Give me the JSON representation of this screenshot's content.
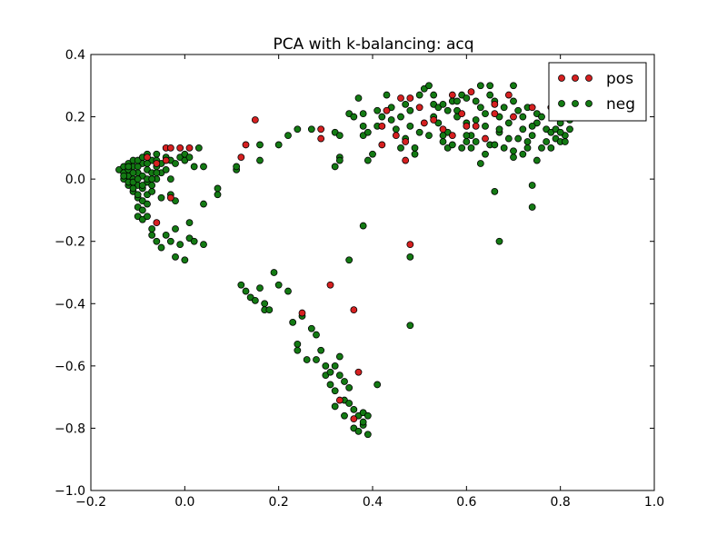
{
  "chart_data": {
    "type": "scatter",
    "title": "PCA with k-balancing: acq",
    "xlabel": "",
    "ylabel": "",
    "xlim": [
      -0.2,
      1.0
    ],
    "ylim": [
      -1.0,
      0.4
    ],
    "xticks": [
      "−0.2",
      "0.0",
      "0.2",
      "0.4",
      "0.6",
      "0.8",
      "1.0"
    ],
    "yticks": [
      "−1.0",
      "−0.8",
      "−0.6",
      "−0.4",
      "−0.2",
      "0.0",
      "0.2",
      "0.4"
    ],
    "grid": false,
    "legend_position": "top-right",
    "series": [
      {
        "name": "pos",
        "color": "#d62020",
        "points": [
          [
            -0.08,
            0.07
          ],
          [
            -0.06,
            0.05
          ],
          [
            -0.04,
            0.1
          ],
          [
            -0.03,
            0.1
          ],
          [
            -0.01,
            0.1
          ],
          [
            0.01,
            0.1
          ],
          [
            -0.06,
            -0.14
          ],
          [
            -0.03,
            -0.06
          ],
          [
            -0.04,
            0.06
          ],
          [
            0.15,
            0.19
          ],
          [
            0.13,
            0.11
          ],
          [
            0.12,
            0.07
          ],
          [
            0.29,
            0.16
          ],
          [
            0.29,
            0.13
          ],
          [
            0.43,
            0.22
          ],
          [
            0.46,
            0.26
          ],
          [
            0.48,
            0.26
          ],
          [
            0.5,
            0.23
          ],
          [
            0.53,
            0.19
          ],
          [
            0.55,
            0.16
          ],
          [
            0.57,
            0.27
          ],
          [
            0.59,
            0.21
          ],
          [
            0.61,
            0.28
          ],
          [
            0.62,
            0.17
          ],
          [
            0.66,
            0.24
          ],
          [
            0.7,
            0.2
          ],
          [
            0.74,
            0.23
          ],
          [
            0.78,
            0.23
          ],
          [
            0.79,
            0.21
          ],
          [
            0.57,
            0.14
          ],
          [
            0.51,
            0.18
          ],
          [
            0.45,
            0.14
          ],
          [
            0.47,
            0.12
          ],
          [
            0.42,
            0.11
          ],
          [
            0.42,
            0.17
          ],
          [
            0.47,
            0.06
          ],
          [
            0.48,
            -0.21
          ],
          [
            0.31,
            -0.34
          ],
          [
            0.36,
            -0.42
          ],
          [
            0.25,
            -0.43
          ],
          [
            0.37,
            -0.62
          ],
          [
            0.33,
            -0.71
          ],
          [
            0.36,
            -0.77
          ],
          [
            0.66,
            0.21
          ],
          [
            0.69,
            0.27
          ],
          [
            0.6,
            0.17
          ],
          [
            0.64,
            0.13
          ]
        ]
      },
      {
        "name": "neg",
        "color": "#137a13",
        "points": [
          [
            -0.14,
            0.03
          ],
          [
            -0.13,
            0.04
          ],
          [
            -0.13,
            0.02
          ],
          [
            -0.12,
            0.05
          ],
          [
            -0.12,
            0.01
          ],
          [
            -0.12,
            -0.02
          ],
          [
            -0.11,
            0.04
          ],
          [
            -0.11,
            0.0
          ],
          [
            -0.11,
            -0.04
          ],
          [
            -0.11,
            0.06
          ],
          [
            -0.1,
            0.02
          ],
          [
            -0.1,
            -0.02
          ],
          [
            -0.1,
            -0.06
          ],
          [
            -0.1,
            -0.09
          ],
          [
            -0.09,
            0.05
          ],
          [
            -0.09,
            0.01
          ],
          [
            -0.09,
            -0.03
          ],
          [
            -0.09,
            -0.07
          ],
          [
            -0.09,
            -0.1
          ],
          [
            -0.08,
            0.03
          ],
          [
            -0.08,
            -0.01
          ],
          [
            -0.08,
            -0.05
          ],
          [
            -0.08,
            -0.08
          ],
          [
            -0.07,
            0.06
          ],
          [
            -0.07,
            0.02
          ],
          [
            -0.07,
            -0.02
          ],
          [
            -0.07,
            -0.04
          ],
          [
            -0.06,
            0.04
          ],
          [
            -0.06,
            0.08
          ],
          [
            -0.06,
            0.0
          ],
          [
            -0.05,
            0.05
          ],
          [
            -0.05,
            0.02
          ],
          [
            -0.05,
            -0.06
          ],
          [
            -0.04,
            0.07
          ],
          [
            -0.04,
            0.03
          ],
          [
            -0.03,
            0.06
          ],
          [
            -0.03,
            0.0
          ],
          [
            -0.03,
            -0.05
          ],
          [
            -0.02,
            -0.07
          ],
          [
            -0.02,
            0.05
          ],
          [
            -0.01,
            0.07
          ],
          [
            0.0,
            0.06
          ],
          [
            0.0,
            0.08
          ],
          [
            0.01,
            0.07
          ],
          [
            0.02,
            0.04
          ],
          [
            0.03,
            0.1
          ],
          [
            0.04,
            0.04
          ],
          [
            -0.13,
            0.0
          ],
          [
            -0.12,
            0.03
          ],
          [
            -0.1,
            0.04
          ],
          [
            -0.08,
            0.05
          ],
          [
            -0.1,
            -0.12
          ],
          [
            -0.09,
            -0.13
          ],
          [
            -0.08,
            -0.12
          ],
          [
            -0.07,
            -0.16
          ],
          [
            -0.06,
            -0.2
          ],
          [
            -0.05,
            -0.22
          ],
          [
            -0.07,
            -0.18
          ],
          [
            -0.04,
            -0.18
          ],
          [
            -0.03,
            -0.2
          ],
          [
            -0.02,
            -0.16
          ],
          [
            -0.02,
            -0.25
          ],
          [
            -0.01,
            -0.21
          ],
          [
            0.0,
            -0.26
          ],
          [
            0.01,
            -0.19
          ],
          [
            0.02,
            -0.2
          ],
          [
            0.04,
            -0.21
          ],
          [
            0.01,
            -0.14
          ],
          [
            0.04,
            -0.08
          ],
          [
            0.07,
            -0.05
          ],
          [
            0.07,
            -0.03
          ],
          [
            0.11,
            0.03
          ],
          [
            0.11,
            0.04
          ],
          [
            0.16,
            0.11
          ],
          [
            0.16,
            0.06
          ],
          [
            0.2,
            0.11
          ],
          [
            0.22,
            0.14
          ],
          [
            0.24,
            0.16
          ],
          [
            0.27,
            0.16
          ],
          [
            0.32,
            0.15
          ],
          [
            0.33,
            0.14
          ],
          [
            0.33,
            0.07
          ],
          [
            0.32,
            0.04
          ],
          [
            0.33,
            0.06
          ],
          [
            0.35,
            0.21
          ],
          [
            0.36,
            0.2
          ],
          [
            0.37,
            0.26
          ],
          [
            0.38,
            0.21
          ],
          [
            0.38,
            0.17
          ],
          [
            0.38,
            0.14
          ],
          [
            0.39,
            0.15
          ],
          [
            0.4,
            0.08
          ],
          [
            0.39,
            0.06
          ],
          [
            0.41,
            0.17
          ],
          [
            0.42,
            0.2
          ],
          [
            0.41,
            0.22
          ],
          [
            0.43,
            0.27
          ],
          [
            0.44,
            0.23
          ],
          [
            0.44,
            0.19
          ],
          [
            0.45,
            0.16
          ],
          [
            0.46,
            0.2
          ],
          [
            0.47,
            0.24
          ],
          [
            0.48,
            0.22
          ],
          [
            0.48,
            0.17
          ],
          [
            0.49,
            0.1
          ],
          [
            0.49,
            0.08
          ],
          [
            0.5,
            0.15
          ],
          [
            0.5,
            0.27
          ],
          [
            0.51,
            0.29
          ],
          [
            0.52,
            0.3
          ],
          [
            0.53,
            0.27
          ],
          [
            0.53,
            0.24
          ],
          [
            0.54,
            0.23
          ],
          [
            0.54,
            0.18
          ],
          [
            0.55,
            0.12
          ],
          [
            0.56,
            0.1
          ],
          [
            0.56,
            0.15
          ],
          [
            0.57,
            0.25
          ],
          [
            0.58,
            0.22
          ],
          [
            0.58,
            0.2
          ],
          [
            0.59,
            0.27
          ],
          [
            0.6,
            0.18
          ],
          [
            0.6,
            0.12
          ],
          [
            0.61,
            0.14
          ],
          [
            0.62,
            0.25
          ],
          [
            0.62,
            0.19
          ],
          [
            0.63,
            0.3
          ],
          [
            0.63,
            0.23
          ],
          [
            0.64,
            0.21
          ],
          [
            0.64,
            0.17
          ],
          [
            0.65,
            0.11
          ],
          [
            0.65,
            0.3
          ],
          [
            0.66,
            0.25
          ],
          [
            0.67,
            0.2
          ],
          [
            0.67,
            0.15
          ],
          [
            0.68,
            0.1
          ],
          [
            0.68,
            0.23
          ],
          [
            0.69,
            0.18
          ],
          [
            0.7,
            0.3
          ],
          [
            0.7,
            0.25
          ],
          [
            0.71,
            0.22
          ],
          [
            0.71,
            0.13
          ],
          [
            0.72,
            0.16
          ],
          [
            0.72,
            0.2
          ],
          [
            0.73,
            0.23
          ],
          [
            0.73,
            0.1
          ],
          [
            0.74,
            0.14
          ],
          [
            0.75,
            0.18
          ],
          [
            0.75,
            0.21
          ],
          [
            0.76,
            0.2
          ],
          [
            0.76,
            0.1
          ],
          [
            0.77,
            0.12
          ],
          [
            0.77,
            0.16
          ],
          [
            0.78,
            0.15
          ],
          [
            0.79,
            0.13
          ],
          [
            0.8,
            0.12
          ],
          [
            0.8,
            0.18
          ],
          [
            0.81,
            0.14
          ],
          [
            0.82,
            0.19
          ],
          [
            0.82,
            0.16
          ],
          [
            0.63,
            0.05
          ],
          [
            0.64,
            0.08
          ],
          [
            0.66,
            -0.04
          ],
          [
            0.7,
            0.07
          ],
          [
            0.74,
            -0.02
          ],
          [
            0.7,
            0.09
          ],
          [
            0.72,
            0.08
          ],
          [
            0.75,
            0.06
          ],
          [
            0.67,
            -0.2
          ],
          [
            0.74,
            -0.09
          ],
          [
            0.48,
            -0.25
          ],
          [
            0.48,
            -0.47
          ],
          [
            0.35,
            -0.26
          ],
          [
            0.38,
            -0.15
          ],
          [
            0.12,
            -0.34
          ],
          [
            0.13,
            -0.36
          ],
          [
            0.14,
            -0.38
          ],
          [
            0.15,
            -0.39
          ],
          [
            0.16,
            -0.35
          ],
          [
            0.17,
            -0.4
          ],
          [
            0.17,
            -0.42
          ],
          [
            0.18,
            -0.42
          ],
          [
            0.19,
            -0.3
          ],
          [
            0.2,
            -0.34
          ],
          [
            0.22,
            -0.36
          ],
          [
            0.23,
            -0.46
          ],
          [
            0.24,
            -0.53
          ],
          [
            0.24,
            -0.55
          ],
          [
            0.25,
            -0.44
          ],
          [
            0.26,
            -0.58
          ],
          [
            0.27,
            -0.48
          ],
          [
            0.28,
            -0.5
          ],
          [
            0.28,
            -0.58
          ],
          [
            0.29,
            -0.55
          ],
          [
            0.3,
            -0.6
          ],
          [
            0.3,
            -0.63
          ],
          [
            0.31,
            -0.66
          ],
          [
            0.31,
            -0.62
          ],
          [
            0.32,
            -0.6
          ],
          [
            0.32,
            -0.68
          ],
          [
            0.33,
            -0.63
          ],
          [
            0.33,
            -0.57
          ],
          [
            0.34,
            -0.65
          ],
          [
            0.34,
            -0.71
          ],
          [
            0.35,
            -0.67
          ],
          [
            0.35,
            -0.72
          ],
          [
            0.36,
            -0.74
          ],
          [
            0.36,
            -0.8
          ],
          [
            0.37,
            -0.76
          ],
          [
            0.37,
            -0.81
          ],
          [
            0.38,
            -0.79
          ],
          [
            0.38,
            -0.75
          ],
          [
            0.39,
            -0.82
          ],
          [
            0.39,
            -0.76
          ],
          [
            0.38,
            -0.78
          ],
          [
            0.41,
            -0.66
          ],
          [
            0.32,
            -0.73
          ],
          [
            0.34,
            -0.76
          ],
          [
            0.46,
            0.1
          ],
          [
            0.47,
            0.13
          ],
          [
            0.52,
            0.14
          ],
          [
            0.55,
            0.14
          ],
          [
            0.57,
            0.11
          ],
          [
            0.59,
            0.1
          ],
          [
            0.61,
            0.1
          ],
          [
            0.53,
            0.2
          ],
          [
            0.55,
            0.24
          ],
          [
            0.56,
            0.22
          ],
          [
            0.58,
            0.25
          ],
          [
            0.6,
            0.26
          ],
          [
            0.65,
            0.27
          ],
          [
            0.67,
            0.16
          ],
          [
            0.69,
            0.13
          ],
          [
            0.73,
            0.12
          ],
          [
            0.74,
            0.17
          ],
          [
            0.78,
            0.1
          ],
          [
            0.79,
            0.16
          ],
          [
            0.8,
            0.15
          ],
          [
            0.81,
            0.12
          ],
          [
            0.6,
            0.14
          ],
          [
            0.62,
            0.12
          ],
          [
            0.66,
            0.11
          ],
          [
            -0.13,
            0.01
          ],
          [
            -0.12,
            -0.01
          ],
          [
            -0.11,
            -0.01
          ],
          [
            -0.1,
            0.0
          ],
          [
            -0.09,
            -0.02
          ],
          [
            -0.08,
            0.0
          ],
          [
            -0.1,
            -0.05
          ],
          [
            -0.11,
            -0.03
          ],
          [
            -0.07,
            0.0
          ],
          [
            -0.06,
            0.02
          ],
          [
            -0.11,
            0.02
          ],
          [
            -0.12,
            0.04
          ],
          [
            -0.1,
            0.06
          ],
          [
            -0.09,
            0.07
          ],
          [
            -0.08,
            0.08
          ],
          [
            -0.06,
            0.06
          ]
        ]
      }
    ]
  }
}
